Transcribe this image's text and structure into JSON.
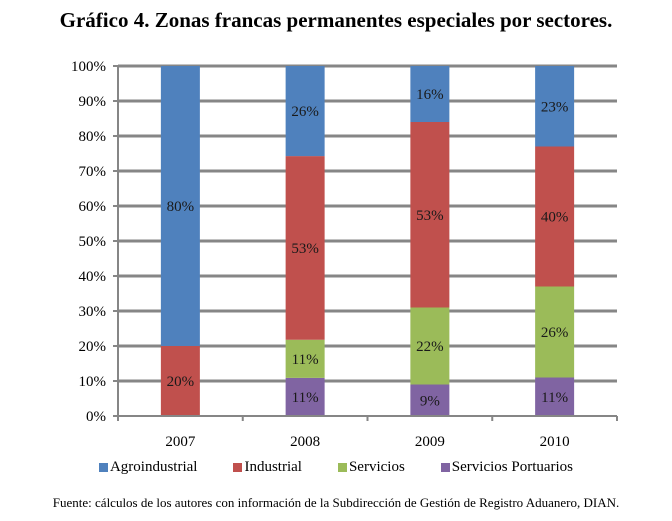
{
  "chart_data": {
    "type": "bar",
    "stacked": true,
    "percent": true,
    "title": "Gráfico 4. Zonas francas permanentes especiales por sectores.",
    "xlabel": "",
    "ylabel": "",
    "categories": [
      "2007",
      "2008",
      "2009",
      "2010"
    ],
    "series": [
      {
        "name": "Servicios Portuarios",
        "color": "#8064a2",
        "values": [
          0,
          11,
          9,
          11
        ],
        "labels": [
          "",
          "11%",
          "9%",
          "11%"
        ]
      },
      {
        "name": "Servicios",
        "color": "#9bbb59",
        "values": [
          0,
          11,
          22,
          26
        ],
        "labels": [
          "",
          "11%",
          "22%",
          "26%"
        ]
      },
      {
        "name": "Industrial",
        "color": "#c0504d",
        "values": [
          20,
          53,
          53,
          40
        ],
        "labels": [
          "20%",
          "53%",
          "53%",
          "40%"
        ]
      },
      {
        "name": "Agroindustrial",
        "color": "#4f81bd",
        "values": [
          80,
          26,
          16,
          23
        ],
        "labels": [
          "80%",
          "26%",
          "16%",
          "23%"
        ]
      }
    ],
    "ylim": [
      0,
      100
    ],
    "yticks": [
      "0%",
      "10%",
      "20%",
      "30%",
      "40%",
      "50%",
      "60%",
      "70%",
      "80%",
      "90%",
      "100%"
    ],
    "grid": true,
    "legend_position": "bottom",
    "legend": [
      "Agroindustrial",
      "Industrial",
      "Servicios",
      "Servicios Portuarios"
    ]
  },
  "source": "Fuente: cálculos de los autores con información de la Subdirección de Gestión de Registro Aduanero, DIAN."
}
